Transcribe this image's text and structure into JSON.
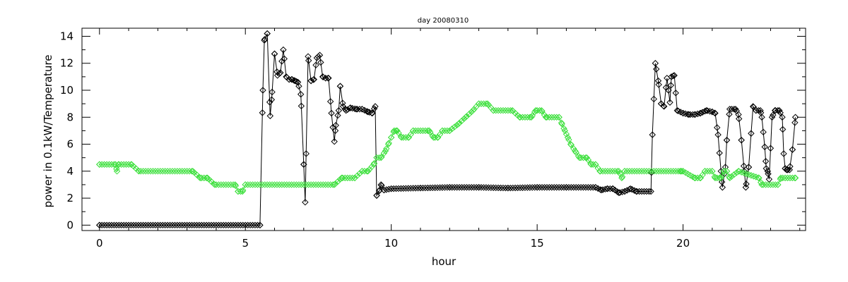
{
  "chart_data": {
    "type": "line",
    "title": "day 20080310",
    "xlabel": "hour",
    "ylabel": "power in 0.1kW/Temperature",
    "xlim": [
      -0.6,
      24.2
    ],
    "ylim": [
      -0.4,
      14.6
    ],
    "x_ticks": [
      0,
      5,
      10,
      15,
      20
    ],
    "y_ticks": [
      0,
      2,
      4,
      6,
      8,
      10,
      12,
      14
    ],
    "grid": false,
    "legend": "none",
    "series": [
      {
        "color": "#000000",
        "marker": "diamond",
        "points": [
          [
            0,
            0
          ],
          [
            5.5,
            0
          ],
          [
            5.6,
            10
          ],
          [
            5.65,
            13.7
          ],
          [
            5.75,
            14.2
          ],
          [
            5.85,
            8.1
          ],
          [
            5.9,
            9.3
          ],
          [
            6.0,
            12.7
          ],
          [
            6.1,
            11.1
          ],
          [
            6.2,
            11.3
          ],
          [
            6.3,
            13.0
          ],
          [
            6.4,
            11.0
          ],
          [
            6.5,
            10.8
          ],
          [
            6.6,
            10.8
          ],
          [
            6.7,
            10.7
          ],
          [
            6.8,
            10.6
          ],
          [
            6.9,
            9.7
          ],
          [
            7.0,
            4.5
          ],
          [
            7.05,
            1.7
          ],
          [
            7.15,
            12.5
          ],
          [
            7.25,
            10.7
          ],
          [
            7.35,
            10.8
          ],
          [
            7.45,
            12.4
          ],
          [
            7.55,
            12.6
          ],
          [
            7.65,
            11.0
          ],
          [
            7.75,
            10.9
          ],
          [
            7.85,
            10.9
          ],
          [
            7.95,
            8.3
          ],
          [
            8.05,
            6.2
          ],
          [
            8.1,
            7.4
          ],
          [
            8.2,
            8.5
          ],
          [
            8.25,
            10.3
          ],
          [
            8.35,
            8.8
          ],
          [
            8.45,
            8.5
          ],
          [
            8.6,
            8.7
          ],
          [
            8.8,
            8.6
          ],
          [
            9.0,
            8.6
          ],
          [
            9.2,
            8.4
          ],
          [
            9.35,
            8.3
          ],
          [
            9.45,
            8.8
          ],
          [
            9.5,
            2.2
          ],
          [
            9.6,
            2.6
          ],
          [
            9.65,
            3.0
          ],
          [
            9.75,
            2.6
          ],
          [
            10,
            2.7
          ],
          [
            11,
            2.75
          ],
          [
            12,
            2.8
          ],
          [
            13,
            2.8
          ],
          [
            14,
            2.75
          ],
          [
            15,
            2.8
          ],
          [
            16,
            2.8
          ],
          [
            17,
            2.8
          ],
          [
            17.2,
            2.6
          ],
          [
            17.4,
            2.7
          ],
          [
            17.6,
            2.7
          ],
          [
            17.8,
            2.4
          ],
          [
            18,
            2.5
          ],
          [
            18.2,
            2.7
          ],
          [
            18.4,
            2.5
          ],
          [
            18.9,
            2.5
          ],
          [
            18.95,
            6.7
          ],
          [
            19.05,
            12.0
          ],
          [
            19.15,
            10.7
          ],
          [
            19.25,
            9.0
          ],
          [
            19.35,
            8.8
          ],
          [
            19.45,
            10.9
          ],
          [
            19.55,
            9.1
          ],
          [
            19.6,
            11.0
          ],
          [
            19.7,
            11.1
          ],
          [
            19.8,
            8.5
          ],
          [
            20,
            8.3
          ],
          [
            20.2,
            8.2
          ],
          [
            20.4,
            8.2
          ],
          [
            20.6,
            8.3
          ],
          [
            20.8,
            8.5
          ],
          [
            21.0,
            8.4
          ],
          [
            21.1,
            8.3
          ],
          [
            21.2,
            6.7
          ],
          [
            21.3,
            4.0
          ],
          [
            21.35,
            2.8
          ],
          [
            21.45,
            4.3
          ],
          [
            21.5,
            6.3
          ],
          [
            21.6,
            8.6
          ],
          [
            21.8,
            8.6
          ],
          [
            21.9,
            8.2
          ],
          [
            22.0,
            6.3
          ],
          [
            22.1,
            4.0
          ],
          [
            22.15,
            2.8
          ],
          [
            22.25,
            4.3
          ],
          [
            22.4,
            8.8
          ],
          [
            22.5,
            8.5
          ],
          [
            22.65,
            8.5
          ],
          [
            22.7,
            8.0
          ],
          [
            22.8,
            5.8
          ],
          [
            22.85,
            4.2
          ],
          [
            22.9,
            4.0
          ],
          [
            22.95,
            3.4
          ],
          [
            23.05,
            8.0
          ],
          [
            23.15,
            8.5
          ],
          [
            23.3,
            8.5
          ],
          [
            23.4,
            8.0
          ],
          [
            23.45,
            5.3
          ],
          [
            23.5,
            4.2
          ],
          [
            23.55,
            4.1
          ],
          [
            23.65,
            4.1
          ],
          [
            23.75,
            5.6
          ],
          [
            23.85,
            8.0
          ]
        ]
      },
      {
        "color": "#3fe03f",
        "marker": "diamond",
        "points": [
          [
            0,
            4.5
          ],
          [
            0.55,
            4.5
          ],
          [
            0.6,
            4.0
          ],
          [
            0.65,
            4.5
          ],
          [
            1.1,
            4.5
          ],
          [
            1.35,
            4.0
          ],
          [
            3.2,
            4.0
          ],
          [
            3.45,
            3.5
          ],
          [
            3.7,
            3.5
          ],
          [
            3.95,
            3.0
          ],
          [
            4.65,
            3.0
          ],
          [
            4.75,
            2.5
          ],
          [
            4.9,
            2.5
          ],
          [
            5.0,
            3.0
          ],
          [
            8.05,
            3.0
          ],
          [
            8.3,
            3.5
          ],
          [
            8.75,
            3.5
          ],
          [
            9.0,
            4.0
          ],
          [
            9.2,
            4.0
          ],
          [
            9.4,
            4.5
          ],
          [
            9.5,
            5.0
          ],
          [
            9.65,
            5.0
          ],
          [
            9.8,
            5.5
          ],
          [
            9.9,
            6.0
          ],
          [
            10.0,
            6.5
          ],
          [
            10.1,
            7.0
          ],
          [
            10.2,
            7.0
          ],
          [
            10.35,
            6.5
          ],
          [
            10.6,
            6.5
          ],
          [
            10.75,
            7.0
          ],
          [
            11.3,
            7.0
          ],
          [
            11.45,
            6.5
          ],
          [
            11.6,
            6.5
          ],
          [
            11.75,
            7.0
          ],
          [
            12.0,
            7.0
          ],
          [
            12.3,
            7.5
          ],
          [
            12.55,
            8.0
          ],
          [
            12.8,
            8.5
          ],
          [
            13.0,
            9.0
          ],
          [
            13.3,
            9.0
          ],
          [
            13.5,
            8.5
          ],
          [
            14.15,
            8.5
          ],
          [
            14.4,
            8.0
          ],
          [
            14.8,
            8.0
          ],
          [
            14.95,
            8.5
          ],
          [
            15.15,
            8.5
          ],
          [
            15.3,
            8.0
          ],
          [
            15.75,
            8.0
          ],
          [
            15.85,
            7.5
          ],
          [
            15.95,
            7.0
          ],
          [
            16.05,
            6.5
          ],
          [
            16.15,
            6.0
          ],
          [
            16.3,
            5.5
          ],
          [
            16.45,
            5.0
          ],
          [
            16.7,
            5.0
          ],
          [
            16.85,
            4.5
          ],
          [
            17.0,
            4.5
          ],
          [
            17.15,
            4.0
          ],
          [
            17.8,
            4.0
          ],
          [
            17.9,
            3.5
          ],
          [
            18.0,
            4.0
          ],
          [
            21.9,
            4.0
          ],
          [
            19.9,
            4.0
          ],
          [
            19.95,
            4.0
          ],
          [
            20.0,
            4.0
          ],
          [
            20.4,
            3.5
          ],
          [
            20.6,
            3.5
          ],
          [
            20.75,
            4.0
          ],
          [
            21.0,
            4.0
          ],
          [
            21.1,
            3.5
          ],
          [
            21.3,
            3.5
          ],
          [
            21.4,
            4.0
          ],
          [
            21.5,
            4.0
          ],
          [
            21.6,
            3.5
          ],
          [
            22.6,
            3.5
          ],
          [
            22.7,
            3.0
          ],
          [
            23.25,
            3.0
          ],
          [
            23.35,
            3.5
          ],
          [
            23.85,
            3.5
          ]
        ]
      }
    ]
  }
}
